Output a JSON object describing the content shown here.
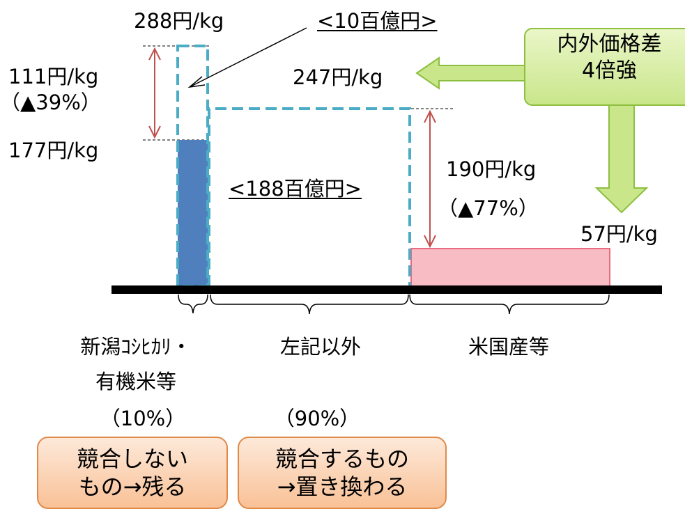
{
  "price_labels": {
    "top_price": "288円/kg",
    "diff_niigata": "111円/kg",
    "diff_niigata_pct": "（▲39%）",
    "niigata_price": "177円/kg",
    "domestic_price": "247円/kg",
    "diff_us": "190円/kg",
    "diff_us_pct": "（▲77%）",
    "us_price": "57円/kg"
  },
  "amount_labels": {
    "niigata_amount": "<10百億円>",
    "other_amount": "<188百億円>"
  },
  "price_gap_box": {
    "line1": "内外価格差",
    "line2": "4倍強"
  },
  "categories": {
    "niigata_line1": "新潟ｺｼﾋｶﾘ・",
    "niigata_line2": "有機米等",
    "niigata_share": "（10%）",
    "other_label": "左記以外",
    "other_share": "（90%）",
    "us_label": "米国産等"
  },
  "outcome_boxes": {
    "no_compete_line1": "競合しない",
    "no_compete_line2": "もの→残る",
    "compete_line1": "競合するもの",
    "compete_line2": "→置き換わる"
  },
  "colors": {
    "niigata_bar": "#4f7fbd",
    "us_bar": "#f7bcc4",
    "dashed_outline": "#4bacc6",
    "arrow_red": "#c0504d",
    "green_arrow": "#c9e68b"
  }
}
